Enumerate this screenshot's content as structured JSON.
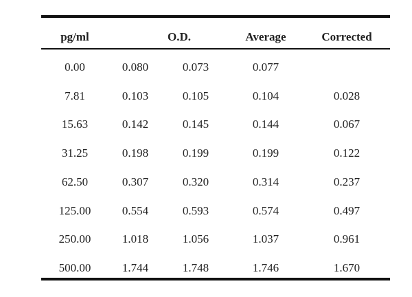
{
  "table": {
    "headers": {
      "pgml": "pg/ml",
      "od": "O.D.",
      "average": "Average",
      "corrected": "Corrected"
    },
    "rows": [
      {
        "pgml": "0.00",
        "od1": "0.080",
        "od2": "0.073",
        "average": "0.077",
        "corrected": ""
      },
      {
        "pgml": "7.81",
        "od1": "0.103",
        "od2": "0.105",
        "average": "0.104",
        "corrected": "0.028"
      },
      {
        "pgml": "15.63",
        "od1": "0.142",
        "od2": "0.145",
        "average": "0.144",
        "corrected": "0.067"
      },
      {
        "pgml": "31.25",
        "od1": "0.198",
        "od2": "0.199",
        "average": "0.199",
        "corrected": "0.122"
      },
      {
        "pgml": "62.50",
        "od1": "0.307",
        "od2": "0.320",
        "average": "0.314",
        "corrected": "0.237"
      },
      {
        "pgml": "125.00",
        "od1": "0.554",
        "od2": "0.593",
        "average": "0.574",
        "corrected": "0.497"
      },
      {
        "pgml": "250.00",
        "od1": "1.018",
        "od2": "1.056",
        "average": "1.037",
        "corrected": "0.961"
      },
      {
        "pgml": "500.00",
        "od1": "1.744",
        "od2": "1.748",
        "average": "1.746",
        "corrected": "1.670"
      }
    ]
  }
}
